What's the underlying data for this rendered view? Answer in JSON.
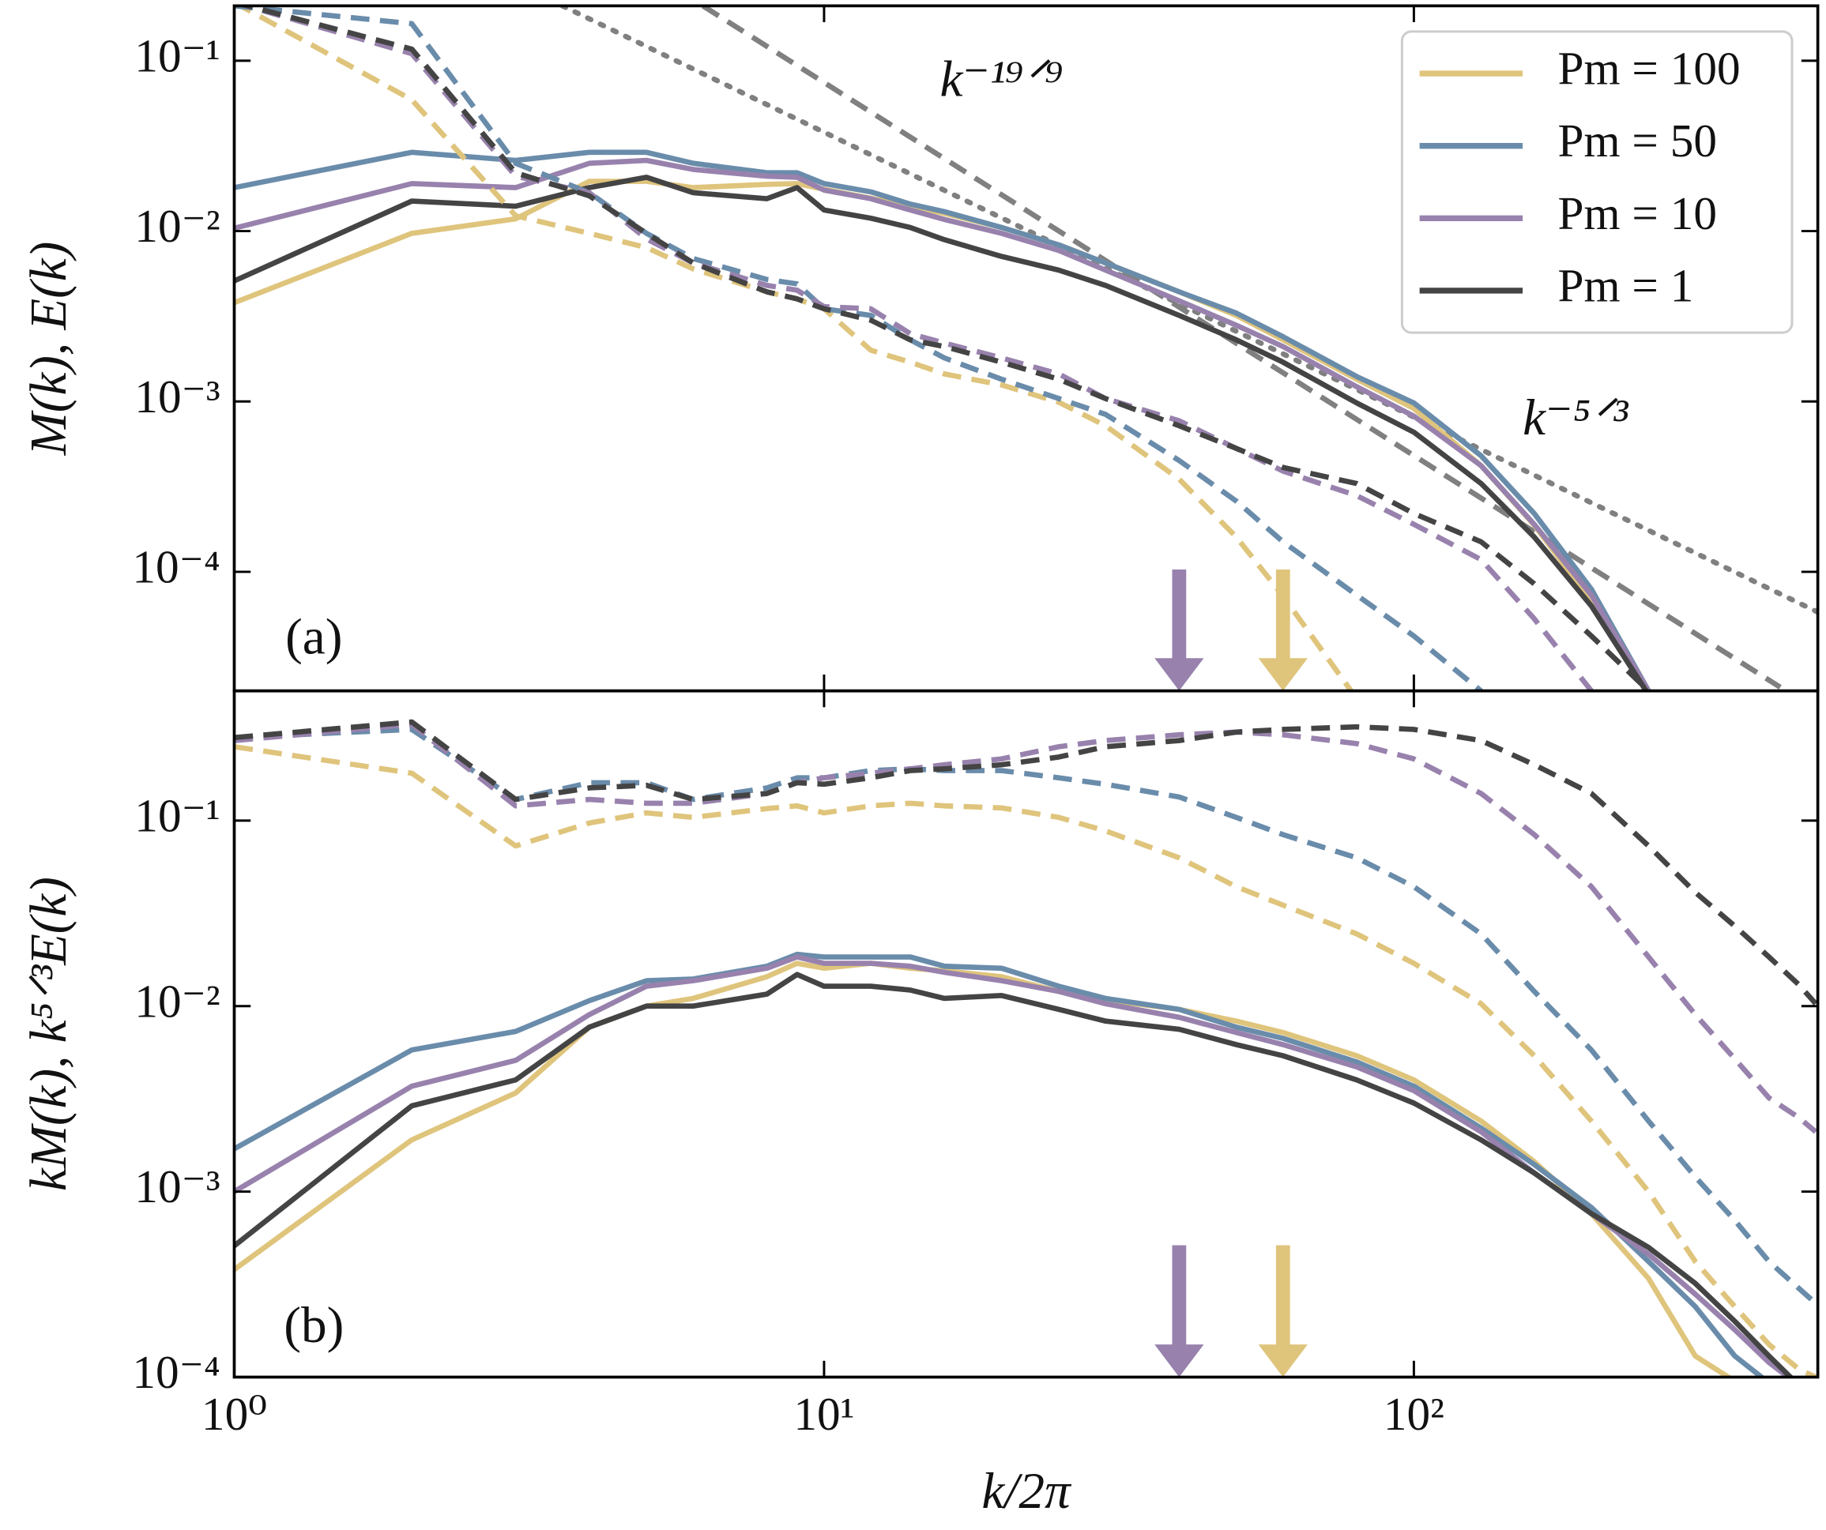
{
  "chart_data": [
    {
      "type": "line",
      "ylabel": "M(k),  E(k)",
      "xlim": [
        1,
        484
      ],
      "ylim": [
        2e-05,
        0.21
      ],
      "log": true,
      "legend": "upper right",
      "xticks": [
        1,
        10,
        100
      ],
      "yticks": [
        {
          "value": 0.1,
          "label": "10⁻¹"
        },
        {
          "value": 0.01,
          "label": "10⁻²"
        },
        {
          "value": 0.001,
          "label": "10⁻³"
        },
        {
          "value": 0.0001,
          "label": "10⁻⁴"
        }
      ],
      "x": [
        1,
        2,
        3,
        4,
        5,
        6,
        8,
        9,
        10,
        12,
        14,
        16,
        20,
        25,
        30,
        40,
        50,
        60,
        80,
        100,
        130,
        160,
        200,
        250,
        300,
        400,
        480
      ],
      "series": [
        {
          "name": "Pm = 100",
          "color": "#dfc47c",
          "style": "solid",
          "values": [
            0.0038,
            0.0097,
            0.0118,
            0.0196,
            0.0196,
            0.018,
            0.0188,
            0.019,
            0.0176,
            0.0156,
            0.014,
            0.0127,
            0.0105,
            0.0083,
            0.0065,
            0.0044,
            0.0032,
            0.0023,
            0.00135,
            0.00091,
            0.00042,
            0.000188,
            6.7e-05,
            1.9e-05,
            null,
            null,
            null
          ]
        },
        {
          "name": "Pm = 50",
          "color": "#6a8cab",
          "style": "solid",
          "values": [
            0.018,
            0.029,
            0.026,
            0.029,
            0.029,
            0.025,
            0.022,
            0.022,
            0.019,
            0.017,
            0.0144,
            0.013,
            0.0105,
            0.0083,
            0.0065,
            0.0044,
            0.0033,
            0.0024,
            0.0014,
            0.00098,
            0.00048,
            0.00022,
            7.9e-05,
            2e-05,
            null,
            null,
            null
          ]
        },
        {
          "name": "Pm = 10",
          "color": "#9882ad",
          "style": "solid",
          "values": [
            0.0104,
            0.019,
            0.018,
            0.025,
            0.026,
            0.023,
            0.021,
            0.0207,
            0.0174,
            0.0155,
            0.0133,
            0.0117,
            0.0097,
            0.0077,
            0.0059,
            0.0039,
            0.0028,
            0.0021,
            0.00122,
            0.00082,
            0.00042,
            0.00019,
            7.3e-05,
            2e-05,
            null,
            null,
            null
          ]
        },
        {
          "name": "Pm = 1",
          "color": "#444444",
          "style": "solid",
          "values": [
            0.0051,
            0.015,
            0.014,
            0.018,
            0.0207,
            0.0168,
            0.0155,
            0.018,
            0.0133,
            0.0119,
            0.0105,
            0.0089,
            0.0071,
            0.0059,
            0.0048,
            0.0032,
            0.0023,
            0.0017,
            0.00098,
            0.00066,
            0.00033,
            0.00016,
            6.3e-05,
            1.9e-05,
            null,
            null,
            null
          ]
        },
        {
          "name": "Pm = 100",
          "color": "#dfc47c",
          "style": "dashed",
          "values": [
            0.22,
            0.059,
            0.0123,
            0.0097,
            0.008,
            0.006,
            0.0044,
            0.004,
            0.0035,
            0.002,
            0.0017,
            0.00145,
            0.00125,
            0.00099,
            0.00072,
            0.00035,
            0.00016,
            7.2e-05,
            1.8e-05,
            null,
            null,
            null,
            null,
            null,
            null,
            null,
            null
          ]
        },
        {
          "name": "Pm = 50",
          "color": "#6a8cab",
          "style": "dashed",
          "values": [
            0.21,
            0.165,
            0.025,
            0.0168,
            0.0097,
            0.0069,
            0.0052,
            0.0049,
            0.0035,
            0.0032,
            0.0023,
            0.0018,
            0.00135,
            0.00104,
            0.00084,
            0.00045,
            0.00026,
            0.00015,
            7.3e-05,
            4.2e-05,
            2e-05,
            null,
            null,
            null,
            null,
            null,
            null
          ]
        },
        {
          "name": "Pm = 10",
          "color": "#9882ad",
          "style": "dashed",
          "values": [
            0.22,
            0.11,
            0.021,
            0.0168,
            0.009,
            0.0065,
            0.0048,
            0.0045,
            0.0036,
            0.0035,
            0.0025,
            0.0022,
            0.0018,
            0.00145,
            0.00104,
            0.00077,
            0.00053,
            0.00039,
            0.00028,
            0.00019,
            0.000118,
            5.3e-05,
            2e-05,
            null,
            null,
            null,
            null
          ]
        },
        {
          "name": "Pm = 1",
          "color": "#444444",
          "style": "dashed",
          "values": [
            0.22,
            0.117,
            0.022,
            0.0161,
            0.0097,
            0.0065,
            0.0044,
            0.004,
            0.0035,
            0.003,
            0.0023,
            0.0021,
            0.0017,
            0.00135,
            0.00104,
            0.00072,
            0.00053,
            0.00041,
            0.00033,
            0.00022,
            0.00015,
            8.5e-05,
            4.2e-05,
            2e-05,
            null,
            null,
            null
          ]
        }
      ],
      "guides": [
        {
          "x": [
            6.23,
            418
          ],
          "values": [
            0.21,
            2.1e-05
          ],
          "color": "#808080",
          "style": "dashed"
        },
        {
          "x": [
            3.6,
            484
          ],
          "values": [
            0.21,
            5.8e-05
          ],
          "color": "#808080",
          "style": "dotted"
        }
      ],
      "markers": [
        {
          "x": 40,
          "color": "#9882ad"
        },
        {
          "x": 60,
          "color": "#dfc47c"
        }
      ],
      "annotations": [
        {
          "text": "(a)"
        },
        {
          "text": "k⁻¹⁹ᐟ⁹",
          "color": "#808080"
        },
        {
          "text": "k⁻⁵ᐟ³",
          "color": "#808080"
        }
      ]
    },
    {
      "type": "line",
      "xlabel": "k/2π",
      "ylabel": "kM(k),  k⁵ᐟ³E(k)",
      "xlim": [
        1,
        484
      ],
      "ylim": [
        0.0001,
        0.5
      ],
      "log": true,
      "xticks": [
        {
          "value": 1,
          "label": "10⁰"
        },
        {
          "value": 10,
          "label": "10¹"
        },
        {
          "value": 100,
          "label": "10²"
        }
      ],
      "yticks": [
        {
          "value": 0.1,
          "label": "10⁻¹"
        },
        {
          "value": 0.01,
          "label": "10⁻²"
        },
        {
          "value": 0.001,
          "label": "10⁻³"
        },
        {
          "value": 0.0001,
          "label": "10⁻⁴"
        }
      ],
      "x": [
        1,
        2,
        3,
        4,
        5,
        6,
        8,
        9,
        10,
        12,
        14,
        16,
        20,
        25,
        30,
        40,
        50,
        60,
        80,
        100,
        130,
        160,
        200,
        250,
        300,
        350,
        400,
        450,
        480
      ],
      "series": [
        {
          "name": "Pm = 100",
          "color": "#dfc47c",
          "style": "solid",
          "values": [
            0.00038,
            0.0019,
            0.0034,
            0.0077,
            0.01,
            0.011,
            0.0144,
            0.017,
            0.016,
            0.017,
            0.016,
            0.0155,
            0.0144,
            0.012,
            0.0108,
            0.0096,
            0.0083,
            0.0072,
            0.0054,
            0.004,
            0.0024,
            0.00145,
            0.00076,
            0.00034,
            0.00013,
            9.5e-05,
            null,
            null,
            null
          ]
        },
        {
          "name": "Pm = 50",
          "color": "#6a8cab",
          "style": "solid",
          "values": [
            0.0017,
            0.0058,
            0.0073,
            0.0107,
            0.0137,
            0.014,
            0.0164,
            0.019,
            0.0184,
            0.0184,
            0.0184,
            0.0164,
            0.016,
            0.0128,
            0.011,
            0.0096,
            0.0077,
            0.0067,
            0.005,
            0.0037,
            0.0022,
            0.0014,
            0.00082,
            0.00042,
            0.00024,
            0.00013,
            9.3e-05,
            null,
            null
          ]
        },
        {
          "name": "Pm = 10",
          "color": "#9882ad",
          "style": "solid",
          "values": [
            0.001,
            0.0037,
            0.0051,
            0.009,
            0.0128,
            0.0137,
            0.016,
            0.0184,
            0.017,
            0.017,
            0.0164,
            0.0152,
            0.0137,
            0.012,
            0.0103,
            0.0087,
            0.0072,
            0.0062,
            0.0047,
            0.0035,
            0.0021,
            0.00126,
            0.00076,
            0.00046,
            0.00028,
            0.00018,
            0.00012,
            9e-05,
            null
          ]
        },
        {
          "name": "Pm = 1",
          "color": "#444444",
          "style": "solid",
          "values": [
            0.00051,
            0.0029,
            0.004,
            0.0077,
            0.01,
            0.01,
            0.0116,
            0.0148,
            0.0128,
            0.0128,
            0.0122,
            0.011,
            0.0114,
            0.0096,
            0.0083,
            0.0075,
            0.0062,
            0.0054,
            0.004,
            0.003,
            0.0019,
            0.00126,
            0.00076,
            0.0005,
            0.00032,
            0.0002,
            0.00013,
            9e-05,
            null
          ]
        },
        {
          "name": "Pm = 100",
          "color": "#dfc47c",
          "style": "dashed",
          "values": [
            0.25,
            0.18,
            0.073,
            0.097,
            0.11,
            0.104,
            0.116,
            0.12,
            0.11,
            0.12,
            0.124,
            0.12,
            0.117,
            0.104,
            0.088,
            0.063,
            0.044,
            0.035,
            0.0245,
            0.017,
            0.0103,
            0.0054,
            0.0024,
            0.001,
            0.00042,
            0.00024,
            0.00015,
            0.00011,
            0.0001
          ]
        },
        {
          "name": "Pm = 50",
          "color": "#6a8cab",
          "style": "dashed",
          "values": [
            0.28,
            0.31,
            0.13,
            0.16,
            0.16,
            0.13,
            0.15,
            0.17,
            0.17,
            0.186,
            0.19,
            0.186,
            0.186,
            0.17,
            0.157,
            0.134,
            0.104,
            0.084,
            0.063,
            0.044,
            0.0245,
            0.012,
            0.0058,
            0.0024,
            0.0012,
            0.0007,
            0.00042,
            0.0003,
            0.00025
          ]
        },
        {
          "name": "Pm = 10",
          "color": "#9882ad",
          "style": "dashed",
          "values": [
            0.27,
            0.33,
            0.12,
            0.13,
            0.124,
            0.124,
            0.14,
            0.16,
            0.17,
            0.18,
            0.19,
            0.2,
            0.215,
            0.25,
            0.27,
            0.29,
            0.3,
            0.29,
            0.26,
            0.215,
            0.14,
            0.084,
            0.044,
            0.0184,
            0.009,
            0.0052,
            0.0032,
            0.0025,
            0.0021
          ]
        },
        {
          "name": "Pm = 1",
          "color": "#444444",
          "style": "dashed",
          "values": [
            0.28,
            0.34,
            0.13,
            0.15,
            0.155,
            0.13,
            0.14,
            0.16,
            0.157,
            0.17,
            0.186,
            0.19,
            0.2,
            0.22,
            0.25,
            0.27,
            0.3,
            0.31,
            0.32,
            0.31,
            0.27,
            0.2,
            0.14,
            0.073,
            0.041,
            0.027,
            0.0184,
            0.013,
            0.0103
          ]
        }
      ],
      "markers": [
        {
          "x": 40,
          "color": "#9882ad"
        },
        {
          "x": 60,
          "color": "#dfc47c"
        }
      ],
      "annotations": [
        {
          "text": "(b)"
        }
      ]
    }
  ]
}
